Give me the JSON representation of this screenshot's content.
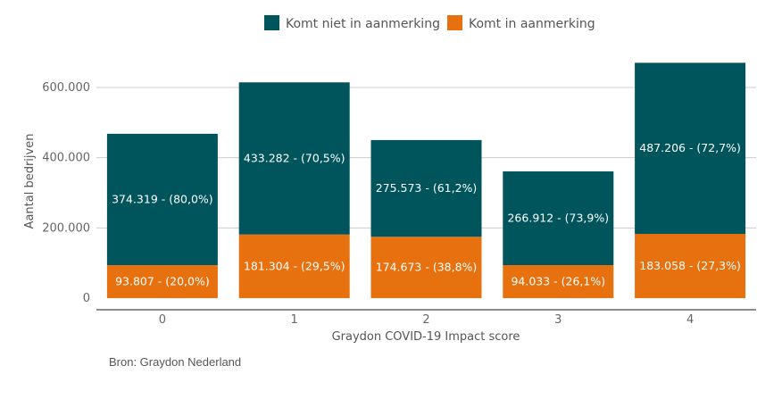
{
  "chart_data": {
    "type": "bar",
    "stacked": true,
    "categories": [
      "0",
      "1",
      "2",
      "3",
      "4"
    ],
    "series": [
      {
        "name": "Komt in aanmerking",
        "color": "#e8710f",
        "values": [
          93807,
          181304,
          174673,
          94033,
          183058
        ],
        "labels": [
          "93.807 - (20,0%)",
          "181.304 - (29,5%)",
          "174.673 - (38,8%)",
          "94.033 - (26,1%)",
          "183.058 - (27,3%)"
        ]
      },
      {
        "name": "Komt niet in aanmerking",
        "color": "#00545c",
        "values": [
          374319,
          433282,
          275573,
          266912,
          487206
        ],
        "labels": [
          "374.319 - (80,0%)",
          "433.282 - (70,5%)",
          "275.573 - (61,2%)",
          "266.912 - (73,9%)",
          "487.206 - (72,7%)"
        ]
      }
    ],
    "legend_order": [
      "Komt niet in aanmerking",
      "Komt in aanmerking"
    ],
    "legend_position": "top",
    "xlabel": "Graydon COVID-19 Impact score",
    "ylabel": "Aantal bedrijven",
    "ylim": [
      0,
      700000
    ],
    "yticks": [
      0,
      200000,
      400000,
      600000
    ],
    "ytick_labels": [
      "0",
      "200.000",
      "400.000",
      "600.000"
    ],
    "grid": true
  },
  "source": "Bron: Graydon Nederland"
}
